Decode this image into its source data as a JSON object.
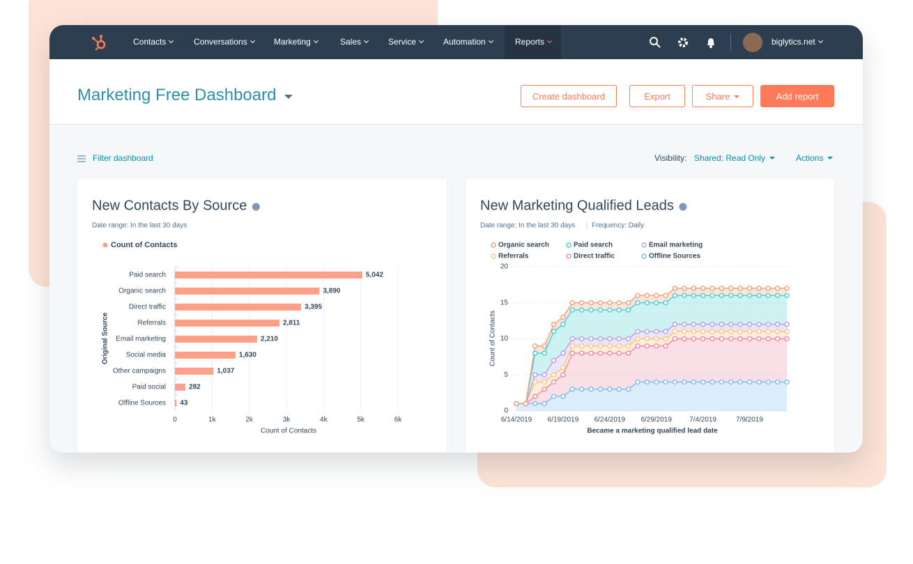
{
  "nav": {
    "items": [
      "Contacts",
      "Conversations",
      "Marketing",
      "Sales",
      "Service",
      "Automation",
      "Reports"
    ],
    "account": "biglytics.net"
  },
  "header": {
    "title": "Marketing Free Dashboard",
    "buttons": [
      "Create dashboard",
      "Export",
      "Share",
      "Add report"
    ]
  },
  "toolbar": {
    "filter": "Filter dashboard",
    "visibility_label": "Visibility:",
    "visibility": "Shared: Read Only",
    "actions": "Actions"
  },
  "chart_data": [
    {
      "type": "bar",
      "title": "New Contacts By Source",
      "date_range": "Date range: In the last 30 days",
      "categories": [
        "Paid search",
        "Organic search",
        "Direct traffic",
        "Referrals",
        "Email marketing",
        "Social media",
        "Other campaigns",
        "Paid social",
        "Offline Sources"
      ],
      "series": [
        {
          "name": "Count of Contacts",
          "color": "#ff9f87",
          "values": [
            5042,
            3890,
            3395,
            2811,
            2210,
            1630,
            1037,
            282,
            43
          ],
          "value_labels": [
            "5,042",
            "3,890",
            "3,395",
            "2,811",
            "2,210",
            "1,630",
            "1,037",
            "282",
            "43"
          ]
        }
      ],
      "xlim": [
        0,
        6000
      ],
      "xticks": [
        0,
        {
          "value": 1000,
          "label": "1k"
        },
        {
          "value": 2000,
          "label": "2k"
        },
        {
          "value": 3000,
          "label": "3k"
        },
        {
          "value": 4000,
          "label": "4k"
        },
        {
          "value": 5000,
          "label": "5k"
        },
        {
          "value": 6000,
          "label": "6k"
        }
      ],
      "x_label": "Count of Contacts",
      "y_label": "Original Source",
      "grid": true
    },
    {
      "type": "stacked-area",
      "title": "New Marketing Qualified Leads",
      "date_range": "Date range: In the last 30 days",
      "frequency": "Frequency: Daily",
      "categories": [
        "6/14/2019",
        "6/15/2019",
        "6/16/2019",
        "6/17/2019",
        "6/18/2019",
        "6/19/2019",
        "6/20/2019",
        "6/21/2019",
        "6/22/2019",
        "6/23/2019",
        "6/24/2019",
        "6/25/2019",
        "6/26/2019",
        "6/27/2019",
        "6/28/2019",
        "6/29/2019",
        "6/30/2019",
        "7/1/2019",
        "7/2/2019",
        "7/3/2019",
        "7/4/2019",
        "7/5/2019",
        "7/6/2019",
        "7/7/2019",
        "7/8/2019",
        "7/9/2019",
        "7/10/2019",
        "7/11/2019",
        "7/12/2019",
        "7/13/2019"
      ],
      "series": [
        {
          "name": "Organic search",
          "color": "#f5a27f",
          "values": [
            0,
            0,
            1,
            1,
            1,
            1,
            1,
            1,
            1,
            1,
            1,
            1,
            1,
            1,
            1,
            1,
            1,
            1,
            1,
            1,
            1,
            1,
            1,
            1,
            1,
            1,
            1,
            1,
            1,
            1
          ]
        },
        {
          "name": "Paid search",
          "color": "#4fcfd0",
          "values": [
            0,
            0,
            3,
            3,
            4,
            4,
            4,
            4,
            4,
            4,
            4,
            4,
            4,
            4,
            4,
            4,
            4,
            4,
            4,
            4,
            4,
            4,
            4,
            4,
            4,
            4,
            4,
            4,
            4,
            4
          ]
        },
        {
          "name": "Email marketing",
          "color": "#b9a3e6",
          "values": [
            0,
            0,
            1,
            1,
            2,
            2,
            1,
            1,
            1,
            1,
            1,
            1,
            1,
            1,
            1,
            1,
            1,
            1,
            1,
            1,
            1,
            1,
            1,
            1,
            1,
            1,
            1,
            1,
            1,
            1
          ]
        },
        {
          "name": "Referrals",
          "color": "#fcc583",
          "values": [
            0,
            0,
            2,
            1,
            1,
            1,
            1,
            1,
            1,
            1,
            1,
            1,
            1,
            1,
            1,
            1,
            1,
            1,
            1,
            1,
            1,
            1,
            1,
            1,
            1,
            1,
            1,
            1,
            1,
            1
          ]
        },
        {
          "name": "Direct traffic",
          "color": "#f08ca6",
          "values": [
            0,
            0,
            1,
            2,
            2,
            3,
            5,
            5,
            5,
            5,
            5,
            5,
            5,
            5,
            5,
            5,
            5,
            6,
            6,
            6,
            6,
            6,
            6,
            6,
            6,
            6,
            6,
            6,
            6,
            6
          ]
        },
        {
          "name": "Offline Sources",
          "color": "#7fbfee",
          "values": [
            1,
            1,
            1,
            1,
            2,
            2,
            3,
            3,
            3,
            3,
            3,
            3,
            3,
            4,
            4,
            4,
            4,
            4,
            4,
            4,
            4,
            4,
            4,
            4,
            4,
            4,
            4,
            4,
            4,
            4
          ]
        }
      ],
      "ylim": [
        0,
        20
      ],
      "yticks": [
        0,
        5,
        10,
        15,
        20
      ],
      "x_label": "Became a marketing qualified lead date",
      "y_label": "Count of Contacts",
      "grid": true
    }
  ]
}
